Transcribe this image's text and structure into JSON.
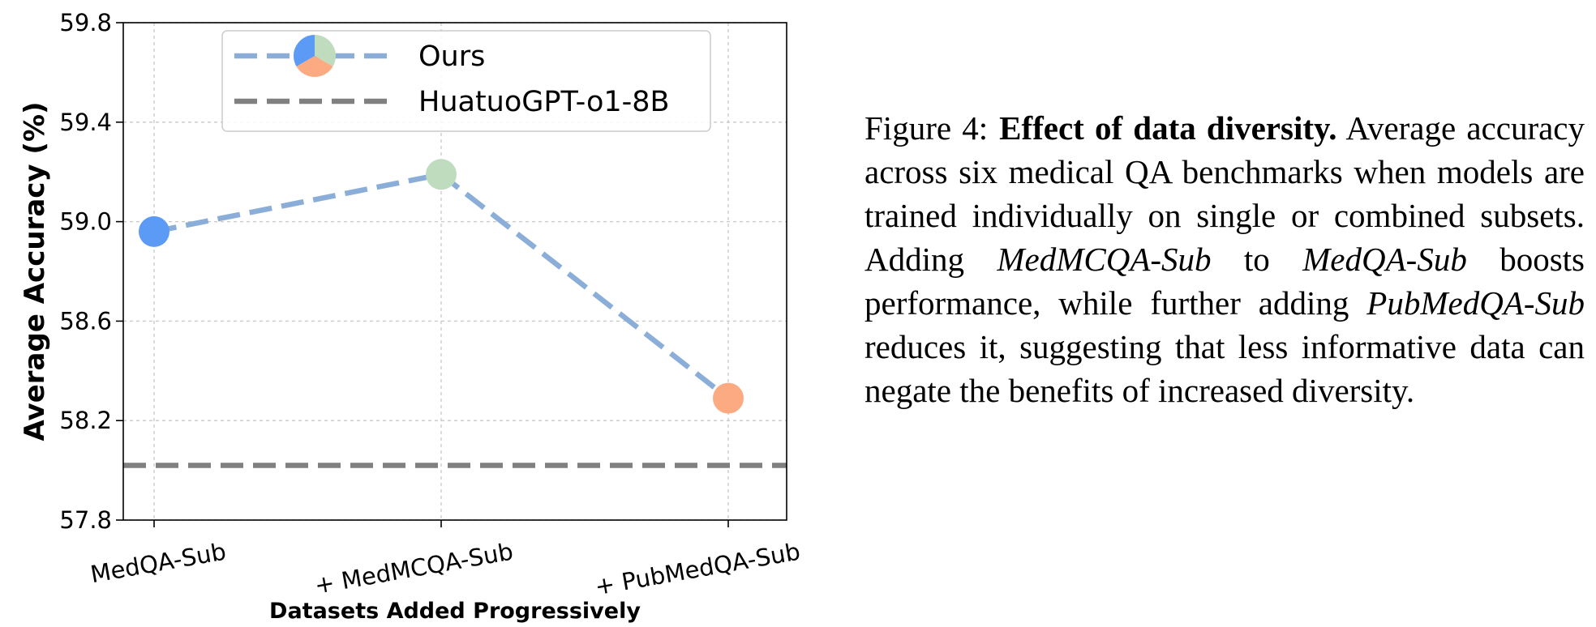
{
  "chart_data": {
    "type": "line",
    "categories": [
      "MedQA-Sub",
      "+ MedMCQA-Sub",
      "+ PubMedQA-Sub"
    ],
    "series": [
      {
        "name": "Ours",
        "values": [
          58.96,
          59.19,
          58.29
        ],
        "color": "#8aaed8",
        "point_colors": [
          "#5b9bf5",
          "#bfdcbf",
          "#fbaa82"
        ]
      }
    ],
    "baselines": [
      {
        "name": "HuatuoGPT-o1-8B",
        "value": 58.02,
        "color": "#808080"
      }
    ],
    "xlabel": "Datasets Added Progressively",
    "ylabel": "Average Accuracy (%)",
    "ylim": [
      57.8,
      59.8
    ],
    "yticks": [
      "57.8",
      "58.2",
      "58.6",
      "59.0",
      "59.4",
      "59.8"
    ],
    "grid": true,
    "legend_position": "upper center"
  },
  "caption": {
    "label": "Figure 4:",
    "title": "Effect of data diversity.",
    "parts": [
      " Average accuracy across six medical QA benchmarks when models are trained individually on single or combined subsets. Adding ",
      "MedMCQA-Sub",
      " to ",
      "MedQA-Sub",
      " boosts performance, while further adding ",
      "PubMedQA-Sub",
      " reduces it, suggesting that less informative data can negate the benefits of increased diversity."
    ]
  }
}
